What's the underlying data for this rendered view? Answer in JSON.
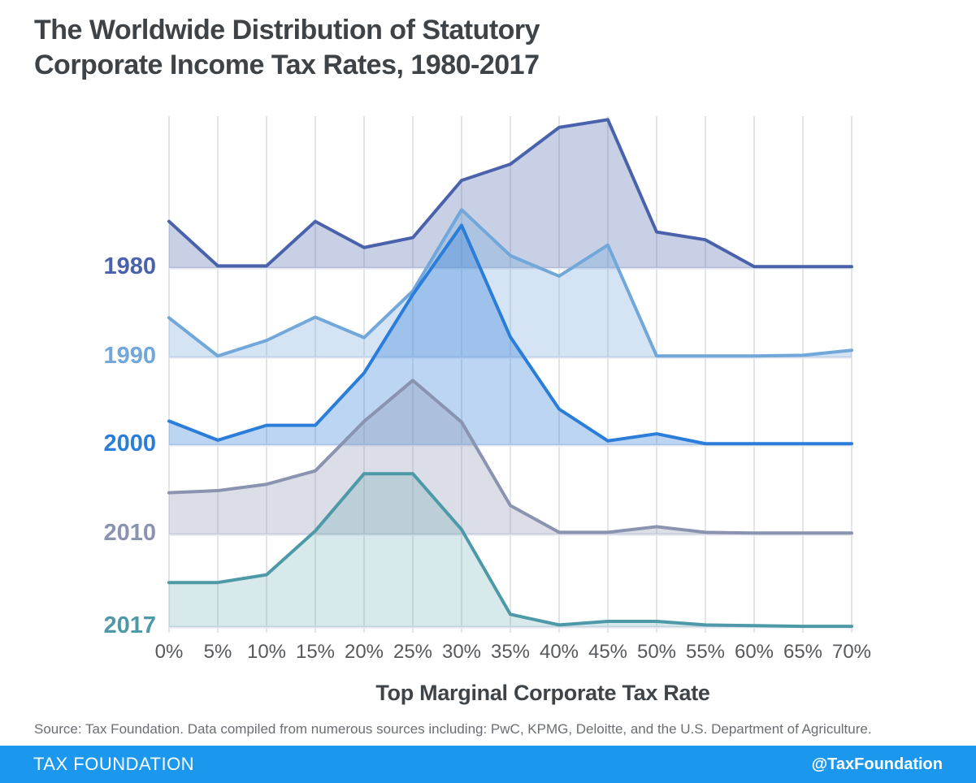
{
  "title": {
    "line1": "The Worldwide Distribution of Statutory",
    "line2": "Corporate Income Tax Rates, 1980-2017"
  },
  "chart_data": {
    "type": "area",
    "variant": "ridgeline",
    "title": "The Worldwide Distribution of Statutory Corporate Income Tax Rates, 1980-2017",
    "xlabel": "Top Marginal Corporate Tax Rate",
    "ylabel": "",
    "x_values": [
      0,
      5,
      10,
      15,
      20,
      25,
      30,
      35,
      40,
      45,
      50,
      55,
      60,
      65,
      70
    ],
    "x_tick_labels": [
      "0%",
      "5%",
      "10%",
      "15%",
      "20%",
      "25%",
      "30%",
      "35%",
      "40%",
      "45%",
      "50%",
      "55%",
      "60%",
      "65%",
      "70%"
    ],
    "value_unit": "estimated share of countries (%), read from ridge heights",
    "grid": "vertical-only",
    "legend_position": "left-inline-year-labels",
    "series": [
      {
        "name": "1980",
        "color": "#4A62AC",
        "values": [
          6.6,
          0.3,
          0.3,
          6.6,
          2.9,
          4.3,
          12.4,
          14.7,
          19.9,
          21.0,
          5.1,
          4.0,
          0.2,
          0.2,
          0.2
        ]
      },
      {
        "name": "1990",
        "color": "#72A7D9",
        "values": [
          5.6,
          0.2,
          2.4,
          5.7,
          2.8,
          9.4,
          20.9,
          14.4,
          11.5,
          15.9,
          0.2,
          0.2,
          0.2,
          0.3,
          1.0
        ]
      },
      {
        "name": "2000",
        "color": "#2A7DD9",
        "values": [
          3.4,
          0.7,
          2.8,
          2.8,
          10.2,
          21.3,
          31.1,
          15.3,
          5.1,
          0.6,
          1.6,
          0.2,
          0.2,
          0.2,
          0.2
        ]
      },
      {
        "name": "2010",
        "color": "#8A93AF",
        "values": [
          5.9,
          6.2,
          7.1,
          9.0,
          16.0,
          21.8,
          15.9,
          4.1,
          0.3,
          0.3,
          1.1,
          0.3,
          0.2,
          0.2,
          0.2
        ]
      },
      {
        "name": "2017",
        "color": "#4E99A8",
        "values": [
          6.3,
          6.3,
          7.4,
          13.6,
          21.7,
          21.7,
          13.8,
          1.8,
          0.3,
          0.8,
          0.8,
          0.3,
          0.2,
          0.1,
          0.1
        ]
      }
    ],
    "axis_colors": {
      "tick_label": "#56585C",
      "axis_title": "#3F4449",
      "gridline": "#E4E5E9",
      "baseline": "#E3E6EF"
    }
  },
  "source_note": "Source: Tax Foundation. Data compiled from numerous sources including: PwC, KPMG, Deloitte, and the U.S. Department of Agriculture.",
  "footer": {
    "brand": "TAX FOUNDATION",
    "handle": "@TaxFoundation",
    "bg_color": "#1B97EE"
  }
}
